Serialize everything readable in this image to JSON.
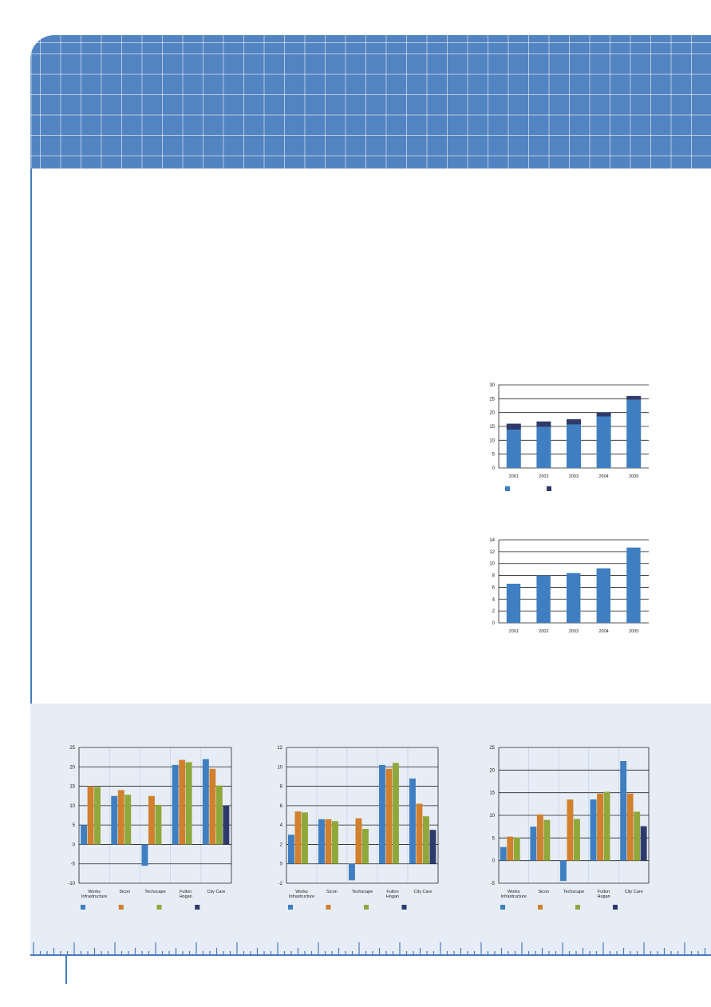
{
  "colors": {
    "header": "#5384c2",
    "panel": "#e7edf6",
    "blue": "#3f7fc1",
    "orange": "#d1802d",
    "green": "#8fa83c",
    "navy": "#2e3a6b",
    "gridline": "#222222"
  },
  "chart_data": [
    {
      "id": "top-stacked",
      "type": "bar",
      "stacked": true,
      "categories": [
        "2001",
        "2002",
        "2003",
        "2004",
        "2005"
      ],
      "series": [
        {
          "color": "#3f7fc1",
          "values": [
            13.8,
            14.8,
            15.7,
            18.6,
            24.6
          ]
        },
        {
          "color": "#2e3a6b",
          "values": [
            2.2,
            2.0,
            1.9,
            1.5,
            1.4
          ]
        }
      ],
      "ylim": [
        0,
        30
      ],
      "yticks": [
        0,
        5,
        10,
        15,
        20,
        25,
        30
      ],
      "grid": true,
      "legend": "bottom-left"
    },
    {
      "id": "middle-bar",
      "type": "bar",
      "categories": [
        "2001",
        "2002",
        "2003",
        "2004",
        "2005"
      ],
      "series": [
        {
          "color": "#3f7fc1",
          "values": [
            6.6,
            8.0,
            8.4,
            9.2,
            12.7
          ]
        }
      ],
      "ylim": [
        0,
        14
      ],
      "yticks": [
        0,
        2,
        4,
        6,
        8,
        10,
        12,
        14
      ],
      "grid": true
    },
    {
      "id": "bottom-left",
      "type": "bar",
      "categories": [
        "Works\nInfrastructure",
        "Sicon",
        "Techscape",
        "Fulton\nHogan",
        "City Care"
      ],
      "series": [
        {
          "color": "#3f7fc1",
          "values": [
            5,
            12.5,
            -5.5,
            20.5,
            22
          ]
        },
        {
          "color": "#d1802d",
          "values": [
            15,
            14,
            12.5,
            21.8,
            19.5
          ]
        },
        {
          "color": "#8fa83c",
          "values": [
            14.8,
            12.8,
            10.2,
            21.2,
            15.2
          ]
        },
        {
          "color": "#2e3a6b",
          "values": [
            null,
            null,
            null,
            null,
            10
          ]
        }
      ],
      "ylim": [
        -10,
        25
      ],
      "yticks": [
        -10,
        -5,
        0,
        5,
        10,
        15,
        20,
        25
      ],
      "grid": true,
      "legend": "bottom"
    },
    {
      "id": "bottom-middle",
      "type": "bar",
      "categories": [
        "Works\nInfrastructure",
        "Sicon",
        "Techscape",
        "Fulton\nHogan",
        "City Care"
      ],
      "series": [
        {
          "color": "#3f7fc1",
          "values": [
            3,
            4.6,
            -1.7,
            10.2,
            8.8
          ]
        },
        {
          "color": "#d1802d",
          "values": [
            5.4,
            4.6,
            4.7,
            9.8,
            6.2
          ]
        },
        {
          "color": "#8fa83c",
          "values": [
            5.3,
            4.4,
            3.6,
            10.4,
            4.9
          ]
        },
        {
          "color": "#2e3a6b",
          "values": [
            null,
            null,
            null,
            null,
            3.5
          ]
        }
      ],
      "ylim": [
        -2,
        12
      ],
      "yticks": [
        -2,
        0,
        2,
        4,
        6,
        8,
        10,
        12
      ],
      "grid": true,
      "legend": "bottom"
    },
    {
      "id": "bottom-right",
      "type": "bar",
      "categories": [
        "Works\nInfrastructure",
        "Sicon",
        "Techscape",
        "Fulton\nHogan",
        "City Care"
      ],
      "series": [
        {
          "color": "#3f7fc1",
          "values": [
            3,
            7.5,
            -4.5,
            13.5,
            22
          ]
        },
        {
          "color": "#d1802d",
          "values": [
            5.3,
            10.2,
            13.5,
            14.8,
            14.8
          ]
        },
        {
          "color": "#8fa83c",
          "values": [
            5.1,
            9,
            9.2,
            15.2,
            10.8
          ]
        },
        {
          "color": "#2e3a6b",
          "values": [
            null,
            null,
            null,
            null,
            7.6
          ]
        }
      ],
      "ylim": [
        -5,
        25
      ],
      "yticks": [
        -5,
        0,
        5,
        10,
        15,
        20,
        25
      ],
      "grid": true,
      "legend": "bottom"
    }
  ]
}
